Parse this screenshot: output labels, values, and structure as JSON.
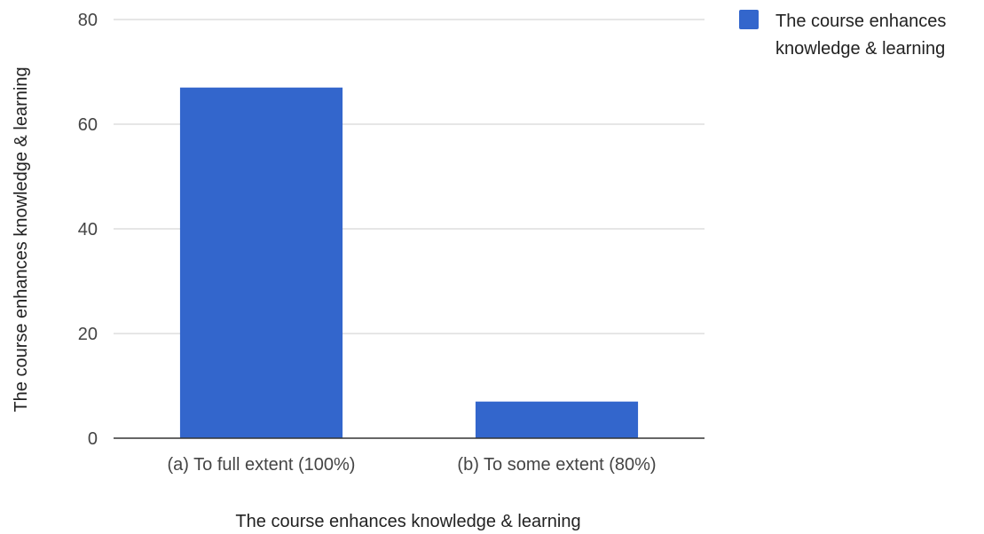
{
  "chart_data": {
    "type": "bar",
    "categories": [
      "(a) To full extent (100%)",
      "(b) To some extent (80%)"
    ],
    "series": [
      {
        "name": "The course enhances knowledge & learning",
        "values": [
          67,
          7
        ],
        "color": "#3366cc"
      }
    ],
    "title": "",
    "xlabel": "The course enhances knowledge & learning",
    "ylabel": "The course enhances knowledge & learning",
    "ylim": [
      0,
      80
    ],
    "yticks": [
      0,
      20,
      40,
      60,
      80
    ],
    "grid": true,
    "legend_position": "right",
    "legend_lines": [
      "The course enhances",
      "knowledge & learning"
    ]
  }
}
